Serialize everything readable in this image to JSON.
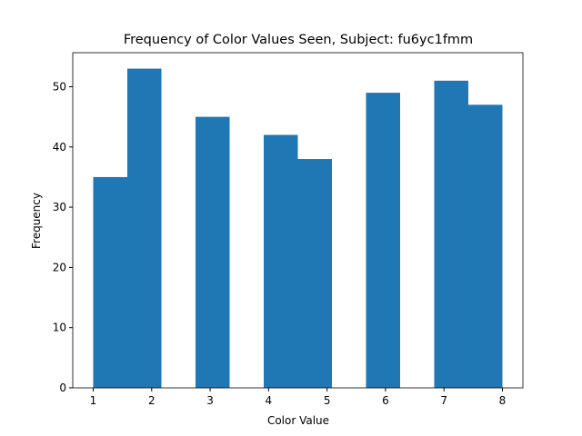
{
  "chart_data": {
    "type": "histogram",
    "title": "Frequency of Color Values Seen, Subject: fu6yc1fmm",
    "x_label": "Color Value",
    "y_label": "Frequency",
    "bins": [
      1,
      1.5833,
      2.1667,
      2.75,
      3.3333,
      3.9167,
      4.5,
      5.0833,
      5.6667,
      6.25,
      6.8333,
      7.4167,
      8
    ],
    "values": [
      35,
      53,
      0,
      45,
      0,
      42,
      38,
      0,
      49,
      0,
      51,
      47
    ],
    "color": "#1f77b4",
    "xlim": [
      0.65,
      8.35
    ],
    "ylim": [
      0,
      55.65
    ],
    "xticks": [
      1,
      2,
      3,
      4,
      5,
      6,
      7,
      8
    ],
    "yticks": [
      0,
      10,
      20,
      30,
      40,
      50
    ]
  }
}
